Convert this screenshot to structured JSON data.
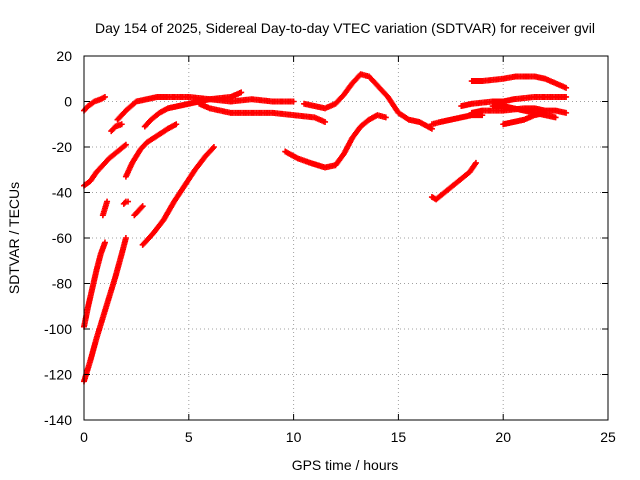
{
  "chart_data": {
    "type": "scatter",
    "title": "Day 154 of 2025, Sidereal Day-to-day VTEC variation (SDTVAR) for receiver gvil",
    "xlabel": "GPS time / hours",
    "ylabel": "SDTVAR / TECUs",
    "xlim": [
      0,
      25
    ],
    "ylim": [
      -140,
      20
    ],
    "xticks": [
      0,
      5,
      10,
      15,
      20,
      25
    ],
    "yticks": [
      -140,
      -120,
      -100,
      -80,
      -60,
      -40,
      -20,
      0,
      20
    ],
    "grid": true,
    "marker": "plus",
    "color": "#ff0000",
    "series": [
      {
        "x": [
          0.0,
          0.2,
          0.5,
          0.8,
          1.0
        ],
        "y": [
          -4,
          -2,
          0,
          1,
          2
        ]
      },
      {
        "x": [
          0.0,
          0.3,
          0.6,
          0.9,
          1.2,
          1.6,
          2.0
        ],
        "y": [
          -37,
          -35,
          -31,
          -28,
          -25,
          -22,
          -19
        ]
      },
      {
        "x": [
          0.0,
          0.2,
          0.4,
          0.6,
          0.8,
          1.0
        ],
        "y": [
          -99,
          -90,
          -82,
          -74,
          -67,
          -62
        ]
      },
      {
        "x": [
          0.0,
          0.3,
          0.6,
          0.9,
          1.2,
          1.5,
          1.8,
          2.0
        ],
        "y": [
          -123,
          -114,
          -104,
          -95,
          -86,
          -77,
          -67,
          -60
        ]
      },
      {
        "x": [
          0.9,
          1.0,
          1.1
        ],
        "y": [
          -50,
          -47,
          -44
        ]
      },
      {
        "x": [
          1.3,
          1.5,
          1.8
        ],
        "y": [
          -13,
          -11,
          -10
        ]
      },
      {
        "x": [
          1.6,
          2.0,
          2.5,
          3.0,
          3.5,
          4.0,
          5.0,
          6.0,
          7.0,
          7.5
        ],
        "y": [
          -8,
          -4,
          0,
          1,
          2,
          2,
          2,
          1,
          2,
          4
        ]
      },
      {
        "x": [
          2.0,
          2.3,
          2.7,
          3.0,
          3.5,
          4.0,
          4.4
        ],
        "y": [
          -33,
          -27,
          -21,
          -18,
          -15,
          -12,
          -10
        ]
      },
      {
        "x": [
          1.9,
          2.0,
          2.1
        ],
        "y": [
          -45,
          -44,
          -44
        ]
      },
      {
        "x": [
          2.4,
          2.6,
          2.8
        ],
        "y": [
          -50,
          -48,
          -46
        ]
      },
      {
        "x": [
          2.8,
          3.3,
          3.8,
          4.3,
          4.8,
          5.3,
          5.8,
          6.2
        ],
        "y": [
          -63,
          -58,
          -52,
          -44,
          -37,
          -30,
          -24,
          -20
        ]
      },
      {
        "x": [
          2.9,
          3.2,
          3.6,
          4.0,
          4.5,
          5.0,
          5.5,
          6.0,
          7.0,
          8.0,
          9.0,
          10.0
        ],
        "y": [
          -11,
          -8,
          -5,
          -3,
          -2,
          -1,
          0,
          1,
          0,
          1,
          0,
          0
        ]
      },
      {
        "x": [
          5.5,
          6.0,
          7.0,
          8.0,
          9.0,
          10.0,
          11.0,
          11.5
        ],
        "y": [
          -1,
          -3,
          -5,
          -5,
          -5,
          -6,
          -7,
          -9
        ]
      },
      {
        "x": [
          9.6,
          10.2,
          10.8,
          11.5,
          12.0,
          12.4,
          12.8,
          13.2,
          13.6,
          14.0,
          14.4
        ],
        "y": [
          -22,
          -25,
          -27,
          -29,
          -28,
          -23,
          -16,
          -11,
          -8,
          -6,
          -7
        ]
      },
      {
        "x": [
          10.5,
          11.0,
          11.5,
          12.0,
          12.4,
          12.8,
          13.2,
          13.6,
          14.0,
          14.5,
          15.0,
          15.5,
          16.0,
          16.6
        ],
        "y": [
          -1,
          -2,
          -3,
          -1,
          3,
          8,
          12,
          11,
          7,
          2,
          -5,
          -8,
          -9,
          -12
        ]
      },
      {
        "x": [
          16.6,
          17.0,
          17.5,
          18.0,
          18.5,
          19.0
        ],
        "y": [
          -10,
          -9,
          -8,
          -7,
          -6,
          -6
        ]
      },
      {
        "x": [
          16.6,
          16.8,
          17.2,
          17.6,
          18.0,
          18.4,
          18.7
        ],
        "y": [
          -42,
          -43,
          -40,
          -37,
          -34,
          -31,
          -27
        ]
      },
      {
        "x": [
          18.5,
          19.0,
          20.0,
          20.6,
          21.5,
          22.0,
          22.5,
          23.0
        ],
        "y": [
          9,
          9,
          10,
          11,
          11,
          10,
          8,
          6
        ]
      },
      {
        "x": [
          18.0,
          18.5,
          19.5,
          20.0,
          20.5,
          21.5,
          22.5,
          23.0
        ],
        "y": [
          -2,
          -1,
          0,
          0,
          1,
          2,
          2,
          2
        ]
      },
      {
        "x": [
          18.5,
          19.0,
          20.0,
          21.0,
          21.5,
          22.0,
          22.5,
          23.0
        ],
        "y": [
          -5,
          -4,
          -4,
          -3,
          -3,
          -4,
          -4,
          -5
        ]
      },
      {
        "x": [
          19.5,
          20.0,
          20.5,
          21.0,
          21.5,
          22.0,
          22.5
        ],
        "y": [
          -2,
          -2,
          -3,
          -4,
          -5,
          -6,
          -7
        ]
      },
      {
        "x": [
          20.0,
          20.5,
          21.0,
          21.5,
          22.0
        ],
        "y": [
          -10,
          -9,
          -8,
          -6,
          -5
        ]
      }
    ]
  }
}
